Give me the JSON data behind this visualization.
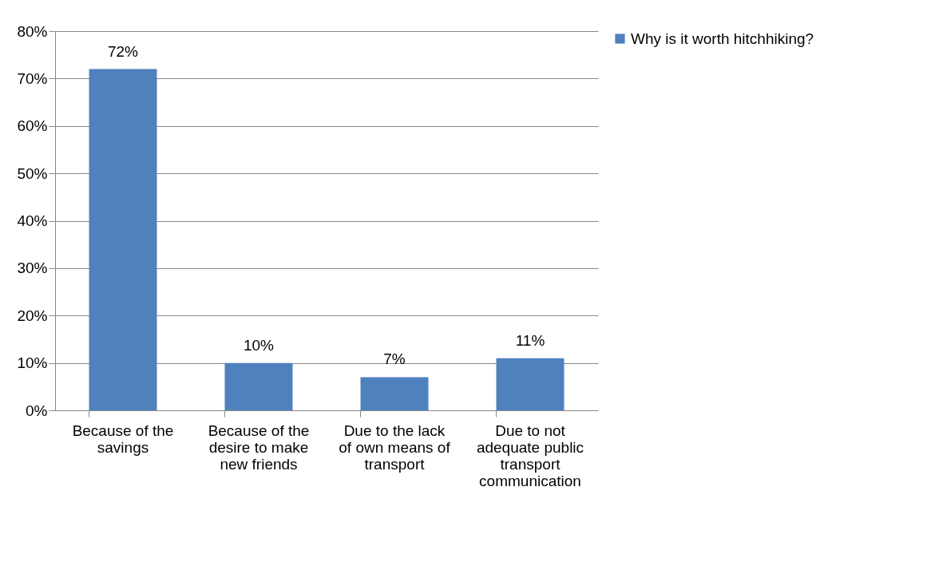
{
  "chart_data": {
    "type": "bar",
    "categories": [
      "Because of the savings",
      "Because of the desire to make new friends",
      "Due to the lack of own means of transport",
      "Due to not adequate public transport communication"
    ],
    "series": [
      {
        "name": "Why is it worth hitchhiking?",
        "color": "#4f81bd",
        "values": [
          72,
          10,
          7,
          11
        ],
        "value_labels": [
          "72%",
          "10%",
          "7%",
          "11%"
        ]
      }
    ],
    "ylim": [
      0,
      80
    ],
    "yticks": [
      {
        "value": 0,
        "label": "0%"
      },
      {
        "value": 10,
        "label": "10%"
      },
      {
        "value": 20,
        "label": "20%"
      },
      {
        "value": 30,
        "label": "30%"
      },
      {
        "value": 40,
        "label": "40%"
      },
      {
        "value": 50,
        "label": "50%"
      },
      {
        "value": 60,
        "label": "60%"
      },
      {
        "value": 70,
        "label": "70%"
      },
      {
        "value": 80,
        "label": "80%"
      }
    ],
    "grid": "y",
    "legend": "right"
  }
}
